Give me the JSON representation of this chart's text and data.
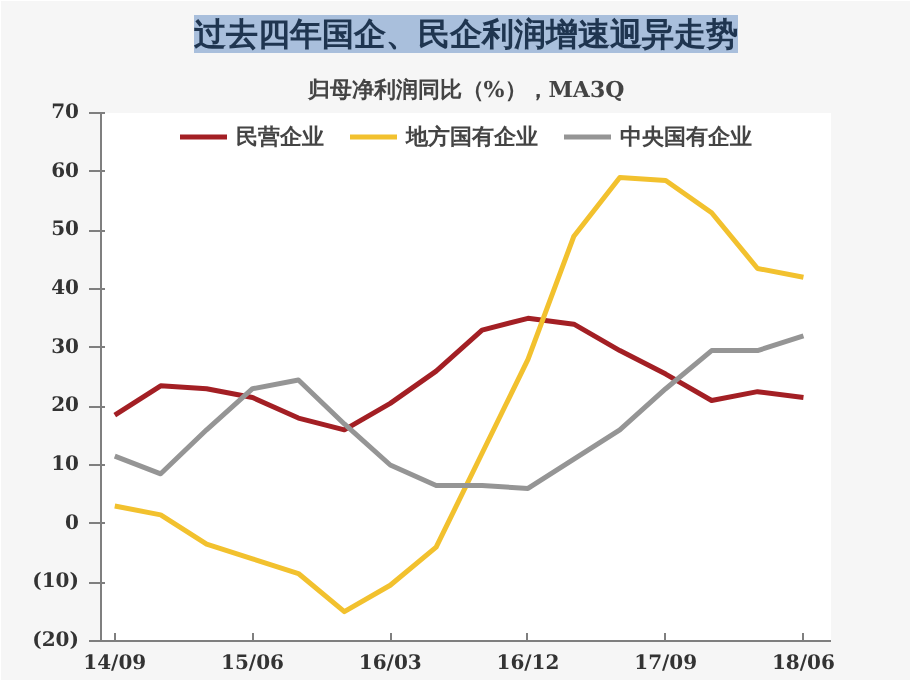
{
  "chart_data": {
    "type": "line",
    "title": "过去四年国企、民企利润增速迥异走势",
    "subtitle": "归母净利润同比（%），MA3Q",
    "categories": [
      "14/09",
      null,
      null,
      "15/06",
      null,
      null,
      "16/03",
      null,
      null,
      "16/12",
      null,
      null,
      "17/09",
      null,
      null,
      "18/06"
    ],
    "series": [
      {
        "name": "民营企业",
        "color": "#a31f24",
        "values": [
          18.5,
          23.5,
          23,
          21.5,
          18,
          16,
          20.5,
          26,
          33,
          35,
          34,
          29.5,
          25.5,
          21,
          22.5,
          21.5
        ]
      },
      {
        "name": "地方国有企业",
        "color": "#f2c12e",
        "values": [
          3,
          1.5,
          -3.5,
          -6,
          -8.5,
          -15,
          -10.5,
          -4,
          12,
          28,
          49,
          59,
          58.5,
          53,
          43.5,
          42
        ]
      },
      {
        "name": "中央国有企业",
        "color": "#959595",
        "values": [
          11.5,
          8.5,
          16,
          23,
          24.5,
          17,
          10,
          6.5,
          6.5,
          6,
          11,
          16,
          23,
          29.5,
          29.5,
          32
        ]
      }
    ],
    "ylim": [
      -20,
      70
    ],
    "yticks": [
      {
        "value": -20,
        "label": "(20)"
      },
      {
        "value": -10,
        "label": "(10)"
      },
      0,
      10,
      20,
      30,
      40,
      50,
      60,
      70
    ],
    "grid": false,
    "legend": "top",
    "line_style": "solid",
    "marker": "none"
  }
}
